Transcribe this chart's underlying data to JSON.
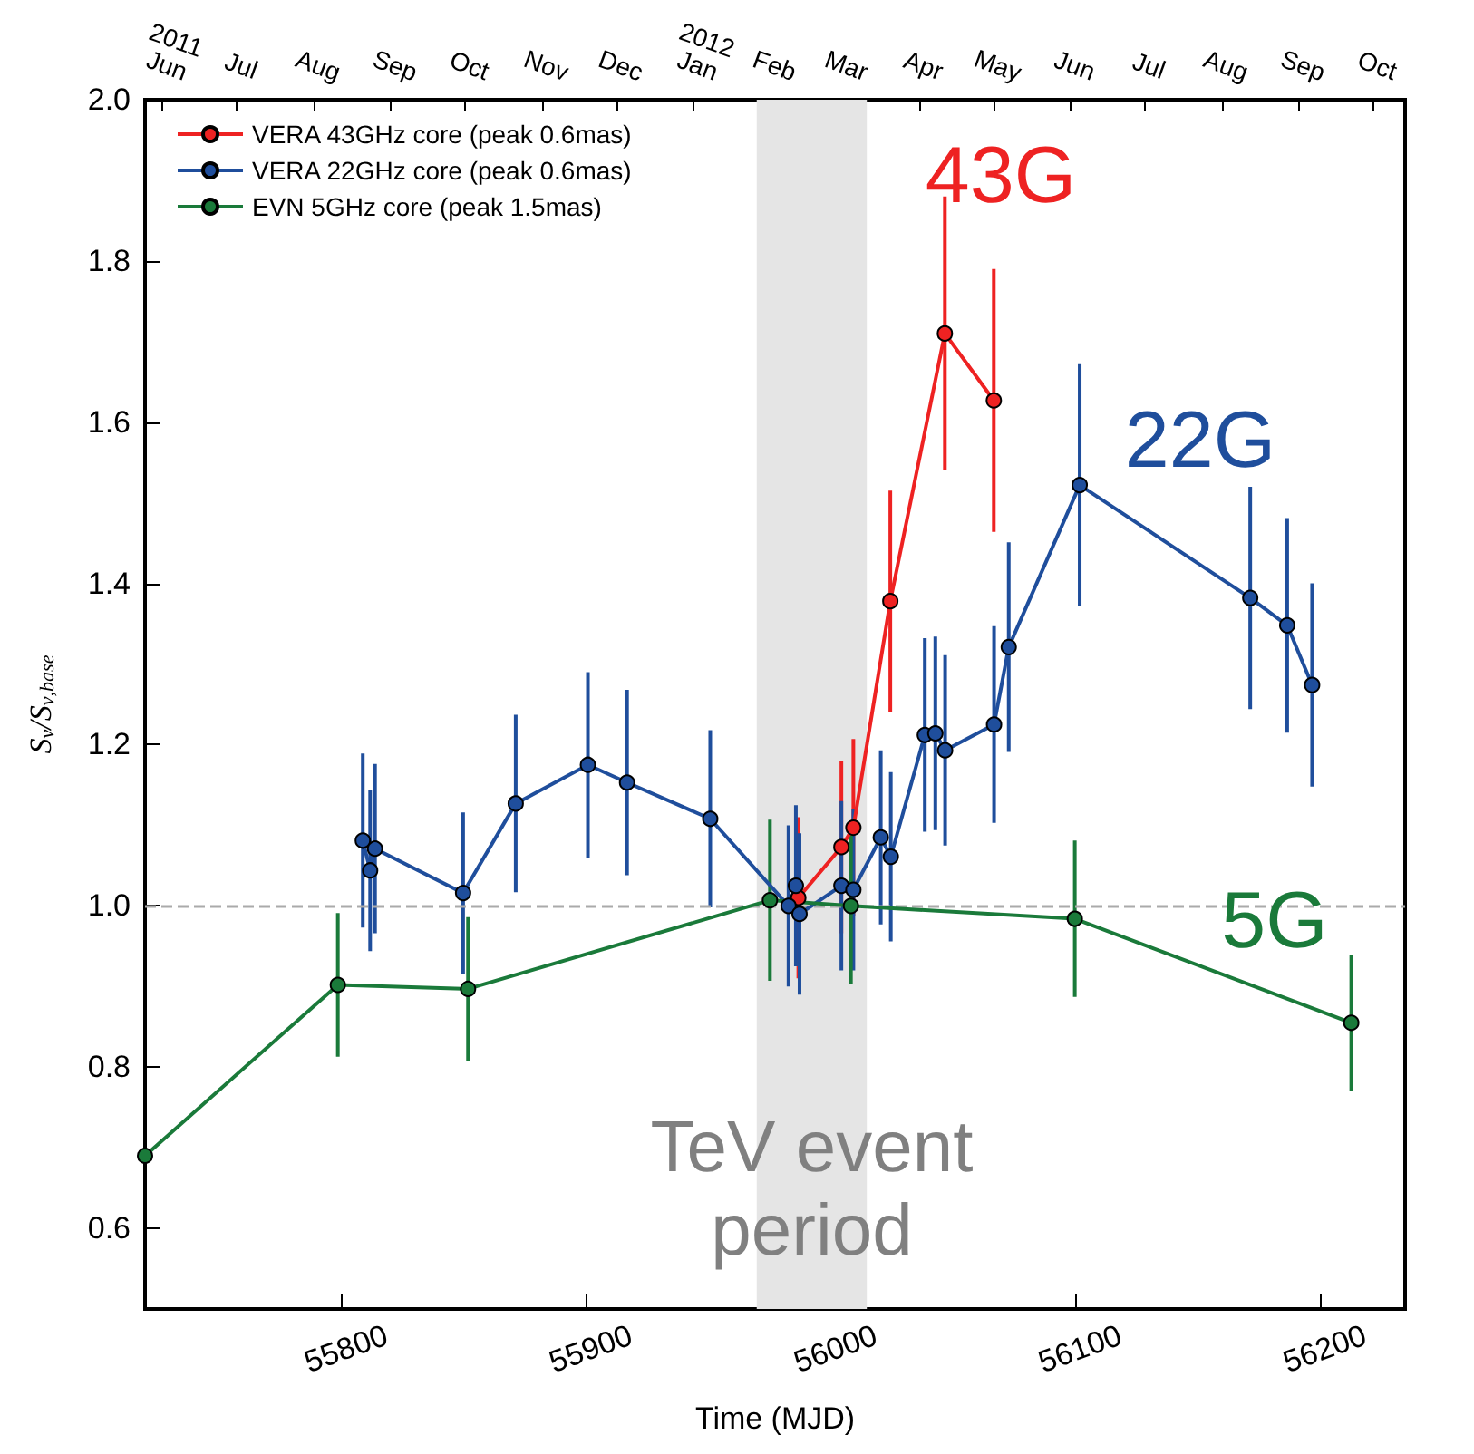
{
  "chart_data": {
    "type": "line",
    "xlabel": "Time (MJD)",
    "ylabel": "S$_{ν}$/S$_{ν,base}$",
    "xlim": [
      55720,
      56235
    ],
    "xticks": [
      55800,
      55900,
      56000,
      56100,
      56200
    ],
    "x2lim": [
      "2011-06-08",
      "2012-10-28"
    ],
    "x2ticks": [
      {
        "value": "2011-06-15",
        "label": "2011\nJun"
      },
      {
        "value": "2011-07-15",
        "label": "Jul"
      },
      {
        "value": "2011-08-15",
        "label": "Aug"
      },
      {
        "value": "2011-09-15",
        "label": "Sep"
      },
      {
        "value": "2011-10-15",
        "label": "Oct"
      },
      {
        "value": "2011-11-15",
        "label": "Nov"
      },
      {
        "value": "2011-12-15",
        "label": "Dec"
      },
      {
        "value": "2012-01-15",
        "label": "2012\nJan"
      },
      {
        "value": "2012-02-15",
        "label": "Feb"
      },
      {
        "value": "2012-03-15",
        "label": "Mar"
      },
      {
        "value": "2012-04-15",
        "label": "Apr"
      },
      {
        "value": "2012-05-15",
        "label": "May"
      },
      {
        "value": "2012-06-15",
        "label": "Jun"
      },
      {
        "value": "2012-07-15",
        "label": "Jul"
      },
      {
        "value": "2012-08-15",
        "label": "Aug"
      },
      {
        "value": "2012-09-15",
        "label": "Sep"
      },
      {
        "value": "2012-10-15",
        "label": "Oct"
      }
    ],
    "ylim": [
      0.5,
      2.0
    ],
    "yticks": [
      0.6,
      0.8,
      {
        "value": 1.0,
        "label": "1.0"
      },
      1.2,
      1.4,
      1.6,
      1.8,
      {
        "value": 2.0,
        "label": "2.0"
      }
    ],
    "legend": "top left",
    "marker": "circle",
    "grid": false,
    "series": [
      {
        "name": "VERA 43GHz core (peak 0.6mas)",
        "color": "#ee2222",
        "x": [
          55987,
          56004.6,
          56009.5,
          56024.6,
          56046.9,
          56066.9
        ],
        "values": [
          1.01,
          1.073,
          1.097,
          1.378,
          1.71,
          1.627
        ],
        "errors": [
          0.1,
          0.107,
          0.11,
          0.137,
          0.17,
          0.163
        ]
      },
      {
        "name": "VERA 22GHz core (peak 0.6mas)",
        "color": "#1f4e9c",
        "x": [
          55809,
          55812,
          55814,
          55850,
          55871.5,
          55901,
          55917,
          55951,
          55983,
          55986,
          55987.5,
          56004.6,
          56009.5,
          56020.7,
          56024.8,
          56038.7,
          56043,
          56047,
          56067,
          56073,
          56102,
          56171.7,
          56186.8,
          56197
        ],
        "values": [
          1.081,
          1.044,
          1.071,
          1.016,
          1.127,
          1.175,
          1.153,
          1.108,
          1.0,
          1.025,
          0.99,
          1.025,
          1.02,
          1.085,
          1.061,
          1.212,
          1.214,
          1.193,
          1.225,
          1.321,
          1.522,
          1.382,
          1.348,
          1.274
        ],
        "errors": [
          0.108,
          0.1,
          0.105,
          0.1,
          0.11,
          0.115,
          0.115,
          0.11,
          0.1,
          0.1,
          0.1,
          0.105,
          0.1,
          0.108,
          0.105,
          0.12,
          0.12,
          0.118,
          0.122,
          0.13,
          0.15,
          0.138,
          0.133,
          0.126
        ]
      },
      {
        "name": "EVN 5GHz core (peak 1.5mas)",
        "color": "#1a7a3a",
        "x": [
          55720,
          55798.8,
          55852,
          55975.4,
          56008.5,
          56100,
          56213
        ],
        "values": [
          0.69,
          0.902,
          0.897,
          1.007,
          1.0,
          0.984,
          0.855
        ],
        "errors": [
          null,
          0.089,
          0.089,
          0.1,
          0.097,
          0.097,
          0.084
        ]
      }
    ],
    "ref_lines": [
      {
        "axis": "y",
        "value": 1.0,
        "color": "#aaaaaa",
        "line_style": "dashed"
      }
    ],
    "bands": [
      {
        "axis": "x",
        "from": 55970,
        "to": 56015,
        "label": "TeV event\nperiod",
        "color": "#e5e5e5"
      }
    ],
    "annotations": [
      "43G",
      "22G",
      "5G"
    ]
  }
}
